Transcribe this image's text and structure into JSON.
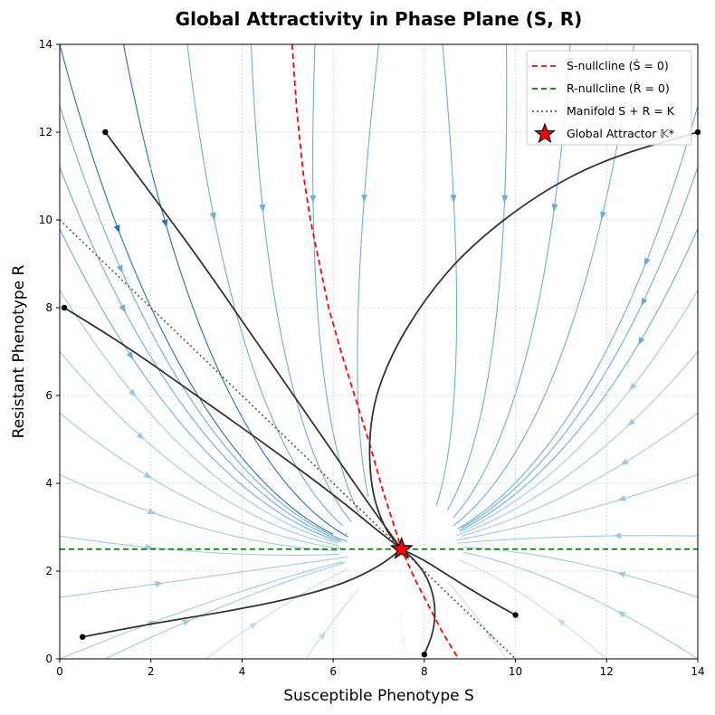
{
  "chart_data": {
    "type": "line",
    "title": "Global Attractivity in Phase Plane (S, R)",
    "xlabel": "Susceptible Phenotype S",
    "ylabel": "Resistant Phenotype R",
    "xlim": [
      0,
      14
    ],
    "ylim": [
      0,
      14
    ],
    "xticks": [
      "0",
      "2",
      "4",
      "6",
      "8",
      "10",
      "12",
      "14"
    ],
    "yticks": [
      "0",
      "2",
      "4",
      "6",
      "8",
      "10",
      "12",
      "14"
    ],
    "grid": true,
    "legend_position": "top-right",
    "attractor": {
      "name": "Global Attractor 𝕂*",
      "S": 7.5,
      "R": 2.5,
      "color": "#ff0000"
    },
    "series": [
      {
        "name": "S-nullcline (Ṡ = 0)",
        "style": "dashed",
        "color": "#ff0000",
        "x": [
          5.1,
          5.2,
          5.35,
          5.5,
          5.7,
          5.9,
          6.2,
          6.5,
          6.8,
          7.1,
          7.5,
          7.8,
          8.1,
          8.4,
          8.75
        ],
        "y": [
          14,
          12.5,
          11,
          10,
          9,
          8,
          6.9,
          5.9,
          4.9,
          3.8,
          2.5,
          1.8,
          1.2,
          0.6,
          0
        ]
      },
      {
        "name": "R-nullcline (Ṙ = 0)",
        "style": "dashed",
        "color": "#008000",
        "x": [
          0,
          14
        ],
        "y": [
          2.5,
          2.5
        ]
      },
      {
        "name": "Manifold S + R = K",
        "style": "dotted",
        "color": "#555555",
        "x": [
          0,
          10
        ],
        "y": [
          10,
          0
        ]
      }
    ],
    "trajectories": [
      {
        "start": [
          1,
          12
        ],
        "x": [
          1,
          2,
          3,
          4,
          5,
          6,
          6.8,
          7.5
        ],
        "y": [
          12,
          10.6,
          9.2,
          7.7,
          6.2,
          4.7,
          3.5,
          2.5
        ]
      },
      {
        "start": [
          0.1,
          8
        ],
        "x": [
          0.1,
          1.5,
          3,
          4.5,
          6,
          7,
          7.5
        ],
        "y": [
          8,
          7.1,
          6.0,
          4.9,
          3.75,
          2.9,
          2.5
        ]
      },
      {
        "start": [
          0.5,
          0.5
        ],
        "x": [
          0.5,
          2,
          3.5,
          5,
          6.2,
          7,
          7.5
        ],
        "y": [
          0.5,
          0.8,
          1.05,
          1.35,
          1.7,
          2.1,
          2.5
        ]
      },
      {
        "start": [
          8,
          0.1
        ],
        "x": [
          8,
          8.2,
          8.25,
          8.1,
          7.8,
          7.5
        ],
        "y": [
          0.1,
          0.6,
          1.2,
          1.8,
          2.25,
          2.5
        ]
      },
      {
        "start": [
          10,
          1
        ],
        "x": [
          10,
          9.3,
          8.6,
          8.0,
          7.5
        ],
        "y": [
          1,
          1.4,
          1.85,
          2.25,
          2.5
        ]
      },
      {
        "start": [
          14,
          12
        ],
        "x": [
          14,
          12,
          10.5,
          9,
          8,
          7.2,
          6.8,
          6.8,
          7.1,
          7.5
        ],
        "y": [
          12,
          11.4,
          10.6,
          9.4,
          8.2,
          6.8,
          5.5,
          4.0,
          3.0,
          2.5
        ]
      }
    ],
    "stream_color_scale": [
      "#f0f4fb",
      "#c6dbef",
      "#9ecae1",
      "#6baed6",
      "#2171b5"
    ]
  }
}
